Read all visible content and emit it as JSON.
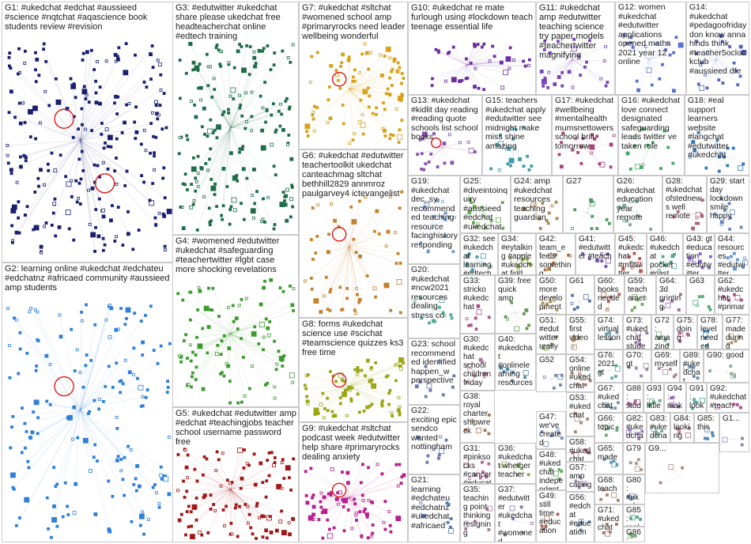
{
  "groups": [
    {
      "id": "G1",
      "label": "G1: #ukedchat #edchat #aussieed #science #nqtchat #aqascience book students review #revision",
      "color": "#1a1f6e",
      "density": 240,
      "rings": 2
    },
    {
      "id": "G2",
      "label": "G2: learning online #ukedchat #edchateu #edchatnz #africaed community #aussieed amp students",
      "color": "#2e7fd8",
      "density": 170,
      "rings": 1
    },
    {
      "id": "G3",
      "label": "G3: #edutwitter #ukedchat share please ukedchat free headteacherchat online #edtech training",
      "color": "#1f6d4a",
      "density": 200,
      "rings": 0
    },
    {
      "id": "G4",
      "label": "G4: #womened #edutwitter #ukedchat #safeguarding #teachertwitter #lgbt case more shocking revelations",
      "color": "#3c9a2f",
      "density": 100,
      "rings": 0
    },
    {
      "id": "G5",
      "label": "G5: #ukedchat #edutwitter amp #edchat #teachingjobs teacher school username password free",
      "color": "#a01818",
      "density": 110,
      "rings": 0
    },
    {
      "id": "G6",
      "label": "G6: #ukedchat #edutwitter teachertoolkit ukedchat canteachmag sltchat bethhill2829 annmroz paulgarvey4 ictevangelist",
      "color": "#c7802f",
      "density": 60,
      "rings": 1
    },
    {
      "id": "G7",
      "label": "G7: #ukedchat #sltchat #womened school amp #primaryrocks need leader wellbeing wonderful",
      "color": "#d9a21a",
      "density": 90,
      "rings": 1
    },
    {
      "id": "G8",
      "label": "G8: forms #ukedchat science use #scichat #teamscience quizzes ks3 free time",
      "color": "#9aa616",
      "density": 80,
      "rings": 1
    },
    {
      "id": "G9",
      "label": "G9: #ukedchat #sltchat podcast week #edutwitter help share #primaryrocks dealing anxiety",
      "color": "#b81e8c",
      "density": 80,
      "rings": 1
    },
    {
      "id": "G10",
      "label": "G10: #ukedchat re mate furlough using #lockdown teach teenage essential life",
      "color": "#6c2f9e",
      "density": 40,
      "rings": 0
    },
    {
      "id": "G11",
      "label": "G11: #ukedchat amp #edutwitter teaching science try paper models #teachertwitter magnifying",
      "color": "#7a44b8",
      "density": 30,
      "rings": 0
    },
    {
      "id": "G12",
      "label": "G12: women #ukedchat #edutwitter applications opened maths 2021 year 12 online",
      "color": "#5b6fd0",
      "density": 20,
      "rings": 0
    },
    {
      "id": "G14",
      "label": "G14: #ukedchat #pedagoofriday don know anna hinds think #teacher5oclockclub #aussieed dfe",
      "color": "#5566bb",
      "density": 20,
      "rings": 0
    },
    {
      "id": "G13",
      "label": "G13: #ukedchat #kidlit day reading #reading quote schools list school books",
      "color": "#8855aa",
      "density": 20,
      "rings": 1
    },
    {
      "id": "G15",
      "label": "G15: teachers #ukedchat apply #edutwitter see midnight make miss shine amazing",
      "color": "#4499aa",
      "density": 20,
      "rings": 0
    },
    {
      "id": "G17",
      "label": "G17: #ukedchat #wellbeing #mentalhealth mumsnettowers school brill tomorrow",
      "color": "#aa4477",
      "density": 20,
      "rings": 0
    },
    {
      "id": "G16",
      "label": "G16: #ukedchat love connect designated safeguarding leads twitter ve taken role",
      "color": "#44aa66",
      "density": 15,
      "rings": 0
    },
    {
      "id": "G18",
      "label": "G18: #eal support learners website #langchat #edutwitter #ukedchat",
      "color": "#3377bb",
      "density": 15,
      "rings": 0
    },
    {
      "id": "G19",
      "label": "G19: #ukedchat dec_sy recommended teaching resource facinghistory responding",
      "color": "#7799cc",
      "density": 15,
      "rings": 0
    },
    {
      "id": "G25",
      "label": "G25: #diveintoinquiry #aussieed #edchat #ukedchat",
      "color": "#66aa55",
      "density": 15,
      "rings": 0
    },
    {
      "id": "G24",
      "label": "G24: amp #ukedchat resources teaching guardian",
      "color": "#aa8855",
      "density": 12,
      "rings": 0
    },
    {
      "id": "G27",
      "label": "G27",
      "color": "#559966",
      "density": 10,
      "rings": 0
    },
    {
      "id": "G26",
      "label": "G26: #ukedchat education year remote",
      "color": "#77aa99",
      "density": 10,
      "rings": 0
    },
    {
      "id": "G28",
      "label": "G28: #ukedchat ofstednews well remote",
      "color": "#aa6677",
      "density": 10,
      "rings": 0
    },
    {
      "id": "G29",
      "label": "G29: start day lockdown smile happy",
      "color": "#6688bb",
      "density": 10,
      "rings": 0
    },
    {
      "id": "G32",
      "label": "G32: see #ukedchat learning #edtech",
      "color": "#5599aa",
      "density": 10,
      "rings": 0
    },
    {
      "id": "G34",
      "label": "G34: #eytalking #apple #ukedchat find",
      "color": "#88aa44",
      "density": 8,
      "rings": 0
    },
    {
      "id": "G42",
      "label": "G42: team_e feels something",
      "color": "#aa7744",
      "density": 8,
      "rings": 0
    },
    {
      "id": "G41",
      "label": "G41: #edutwitter #teach",
      "color": "#7755aa",
      "density": 8,
      "rings": 0
    },
    {
      "id": "G45",
      "label": "G45: #ukedchat #mfltwitter fantastic",
      "color": "#bb5555",
      "density": 8,
      "rings": 0
    },
    {
      "id": "G46",
      "label": "G46: #ukedchat pocket #past",
      "color": "#55aa88",
      "density": 8,
      "rings": 0
    },
    {
      "id": "G43",
      "label": "G43: gt #education #edutwitter learning",
      "color": "#8866cc",
      "density": 8,
      "rings": 0
    },
    {
      "id": "G44",
      "label": "G44: resources #edutwitter #ukedchat",
      "color": "#6699cc",
      "density": 8,
      "rings": 0
    },
    {
      "id": "G20",
      "label": "G20: #ukedchat #ncw2021 resources dealing stress co",
      "color": "#55aa99",
      "density": 12,
      "rings": 0
    },
    {
      "id": "G33",
      "label": "G33: stricko #ukedchat",
      "color": "#aa5588",
      "density": 8,
      "rings": 0
    },
    {
      "id": "G39",
      "label": "G39: free quick amp",
      "color": "#669955",
      "density": 8,
      "rings": 0
    },
    {
      "id": "G50",
      "label": "G50: more development comp",
      "color": "#aa9955",
      "density": 6,
      "rings": 0
    },
    {
      "id": "G61",
      "label": "G61",
      "color": "#5577aa",
      "density": 6,
      "rings": 0
    },
    {
      "id": "G60",
      "label": "G60: books needed",
      "color": "#aa6655",
      "density": 6,
      "rings": 0
    },
    {
      "id": "G59",
      "label": "G59: teach amet",
      "color": "#77aa66",
      "density": 6,
      "rings": 0
    },
    {
      "id": "G64",
      "label": "G64: 3d printing",
      "color": "#9966aa",
      "density": 6,
      "rings": 0
    },
    {
      "id": "G63",
      "label": "G63",
      "color": "#55aa77",
      "density": 6,
      "rings": 0
    },
    {
      "id": "G62",
      "label": "G62: #ukedchat #primary",
      "color": "#aa5577",
      "density": 6,
      "rings": 0
    },
    {
      "id": "G23",
      "label": "G23: school recommended identified happen_w perspective",
      "color": "#6677aa",
      "density": 10,
      "rings": 0
    },
    {
      "id": "G30",
      "label": "G30: #ukedchat school children friday",
      "color": "#aa7799",
      "density": 8,
      "rings": 0
    },
    {
      "id": "G40",
      "label": "G40: #ukedchat #onlinelearning resources",
      "color": "#5588aa",
      "density": 8,
      "rings": 0
    },
    {
      "id": "G51",
      "label": "G51: #edutwitter really",
      "color": "#88aa77",
      "density": 6,
      "rings": 0
    },
    {
      "id": "G55",
      "label": "G55: first video",
      "color": "#aa8866",
      "density": 6,
      "rings": 0
    },
    {
      "id": "G74",
      "label": "G74: virtual lesson",
      "color": "#6699aa",
      "density": 5,
      "rings": 0
    },
    {
      "id": "G73",
      "label": "G73: #ukedchat student",
      "color": "#9977aa",
      "density": 5,
      "rings": 0
    },
    {
      "id": "G72",
      "label": "G72: amazing comments",
      "color": "#77aa88",
      "density": 5,
      "rings": 0
    },
    {
      "id": "G75",
      "label": "G75: doing",
      "color": "#aa6688",
      "density": 5,
      "rings": 0
    },
    {
      "id": "G78",
      "label": "G78: level needed",
      "color": "#5599bb",
      "density": 5,
      "rings": 0
    },
    {
      "id": "G77",
      "label": "G77: made during",
      "color": "#aa9977",
      "density": 5,
      "rings": 0
    },
    {
      "id": "G52",
      "label": "G52",
      "color": "#7788aa",
      "density": 6,
      "rings": 0
    },
    {
      "id": "G54",
      "label": "G54: online #ukedchat",
      "color": "#aa7766",
      "density": 6,
      "rings": 0
    },
    {
      "id": "G76",
      "label": "G76: 2021 gt",
      "color": "#66aa99",
      "density": 5,
      "rings": 0
    },
    {
      "id": "G70",
      "label": "G70: gt",
      "color": "#9988aa",
      "density": 5,
      "rings": 0
    },
    {
      "id": "G69",
      "label": "G69: myself",
      "color": "#aa8899",
      "density": 5,
      "rings": 0
    },
    {
      "id": "G89",
      "label": "G89: #ukedchat",
      "color": "#6688aa",
      "density": 5,
      "rings": 0
    },
    {
      "id": "G90",
      "label": "G90: good",
      "color": "#88aa99",
      "density": 5,
      "rings": 0
    },
    {
      "id": "G22",
      "label": "G22: exciting epic sendco wanted nottingham",
      "color": "#6677bb",
      "density": 8,
      "rings": 0
    },
    {
      "id": "G38",
      "label": "G38: royal charter shipwreck",
      "color": "#aa7755",
      "density": 6,
      "rings": 0
    },
    {
      "id": "G67",
      "label": "G67: #ukedchat",
      "color": "#7799aa",
      "density": 5,
      "rings": 0
    },
    {
      "id": "G88",
      "label": "G88: student",
      "color": "#aa6699",
      "density": 5,
      "rings": 0
    },
    {
      "id": "G93",
      "label": "G93: little",
      "color": "#66aa88",
      "density": 5,
      "rings": 0
    },
    {
      "id": "G94",
      "label": "G94: make",
      "color": "#9966bb",
      "density": 5,
      "rings": 0
    },
    {
      "id": "G91",
      "label": "G91: look",
      "color": "#55aa99",
      "density": 5,
      "rings": 0
    },
    {
      "id": "G92",
      "label": "G92: #ukedchat #teach",
      "color": "#aa5599",
      "density": 5,
      "rings": 0
    },
    {
      "id": "G31",
      "label": "G31: #pinksocks #cancer #education #selfie",
      "color": "#bb6699",
      "density": 8,
      "rings": 0
    },
    {
      "id": "G47",
      "label": "G47: we've created education",
      "color": "#7788bb",
      "density": 6,
      "rings": 0
    },
    {
      "id": "G53",
      "label": "G53: #ukedchat",
      "color": "#aa8877",
      "density": 5,
      "rings": 0
    },
    {
      "id": "G66",
      "label": "G66: topic",
      "color": "#66aa77",
      "density": 5,
      "rings": 0
    },
    {
      "id": "G82",
      "label": "G82: #ukedchat going",
      "color": "#9977bb",
      "density": 5,
      "rings": 0
    },
    {
      "id": "G83",
      "label": "G83: #ukedchat",
      "color": "#77aa99",
      "density": 5,
      "rings": 0
    },
    {
      "id": "G84",
      "label": "G84: looking",
      "color": "#aa7788",
      "density": 5,
      "rings": 0
    },
    {
      "id": "G85",
      "label": "G85: this",
      "color": "#5588bb",
      "density": 5,
      "rings": 0
    },
    {
      "id": "G36",
      "label": "G36: #ukedchat whether teacher",
      "color": "#88aa55",
      "density": 6,
      "rings": 0
    },
    {
      "id": "G58",
      "label": "G58: #ukedchat #maths",
      "color": "#aa6677",
      "density": 5,
      "rings": 0
    },
    {
      "id": "G65",
      "label": "G65: made",
      "color": "#6699bb",
      "density": 5,
      "rings": 0
    },
    {
      "id": "G79",
      "label": "G79",
      "color": "#aa9988",
      "density": 5,
      "rings": 0
    },
    {
      "id": "G80",
      "label": "G80: #ukedchat",
      "color": "#7799bb",
      "density": 4,
      "rings": 0
    },
    {
      "id": "G21",
      "label": "G21: learning #edchateu #edchatnz #ukedchat #africaed",
      "color": "#5577bb",
      "density": 8,
      "rings": 0
    },
    {
      "id": "G35",
      "label": "G35: teaching point thinking resigning",
      "color": "#aa7799",
      "density": 6,
      "rings": 0
    },
    {
      "id": "G48",
      "label": "G48: #ukedchat independent school",
      "color": "#66aa66",
      "density": 5,
      "rings": 0
    },
    {
      "id": "G57",
      "label": "G57: amp calling",
      "color": "#9988bb",
      "density": 5,
      "rings": 0
    },
    {
      "id": "G68",
      "label": "G68: teach",
      "color": "#aa8866",
      "density": 5,
      "rings": 0
    },
    {
      "id": "G85b",
      "label": "G85: real",
      "color": "#55aa88",
      "density": 4,
      "rings": 0
    },
    {
      "id": "G37",
      "label": "G37: #edutwitter #ukedchat #womened",
      "color": "#8877aa",
      "density": 6,
      "rings": 0
    },
    {
      "id": "G49",
      "label": "G49: still time #education",
      "color": "#aa6655",
      "density": 5,
      "rings": 0
    },
    {
      "id": "G56",
      "label": "G56: #edchat #education",
      "color": "#6688aa",
      "density": 5,
      "rings": 0
    },
    {
      "id": "G71",
      "label": "G71: #ukedchat",
      "color": "#aa7766",
      "density": 5,
      "rings": 0
    },
    {
      "id": "G86",
      "label": "G86: bedtime",
      "color": "#77aa77",
      "density": 4,
      "rings": 0
    },
    {
      "id": "G1x",
      "label": "G1...",
      "color": "#8888aa",
      "density": 3,
      "rings": 0
    },
    {
      "id": "G9x",
      "label": "G9...",
      "color": "#aa8888",
      "density": 3,
      "rings": 0
    }
  ]
}
